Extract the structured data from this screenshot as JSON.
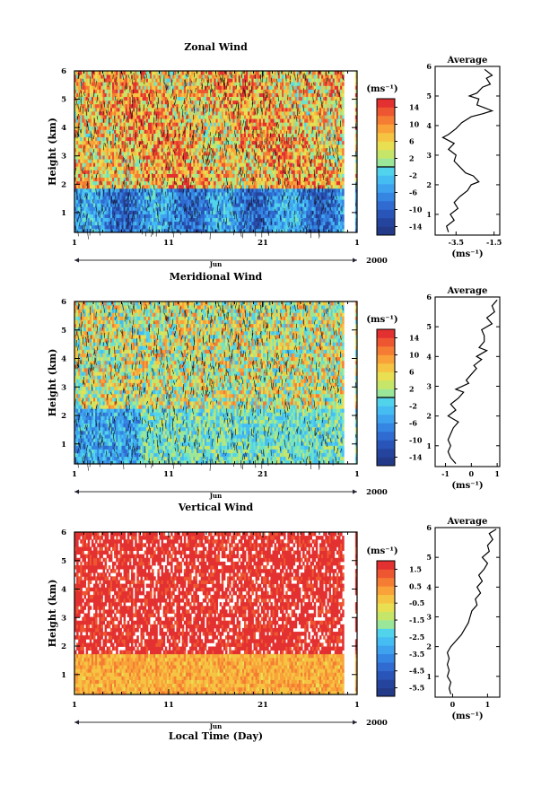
{
  "chart_data": [
    {
      "type": "heatmap",
      "title": "Zonal Wind",
      "ylabel": "Height (km)",
      "xlabel": "",
      "x_ticks": [
        "1",
        "11",
        "21",
        "1"
      ],
      "month_label": "Jun",
      "year_label": "2000",
      "ylim": [
        0.3,
        6
      ],
      "y_ticks": [
        1,
        2,
        3,
        4,
        5,
        6
      ],
      "colorbar": {
        "unit": "(ms⁻¹)",
        "range": [
          -16,
          16
        ],
        "tick_labels": [
          "14",
          "10",
          "6",
          "2",
          "-2",
          "-6",
          "-10",
          "-14"
        ],
        "tick_values": [
          14,
          10,
          6,
          2,
          -2,
          -6,
          -10,
          -14
        ]
      },
      "data_gap_days": [
        28.5,
        29.8
      ],
      "lower_layer_top_km": 1.8,
      "lower_layer_character": "negative (blue), around -8 ms⁻¹",
      "upper_layer_character": "positive (yellow-red), around 6-14 ms⁻¹",
      "profile": {
        "title": "Average",
        "xlabel": "(ms⁻¹)",
        "xlim": [
          -4.6,
          -1.2
        ],
        "x_ticks": [
          "-3.5",
          "-1.5"
        ],
        "x_tick_values": [
          -3.5,
          -1.5
        ],
        "y_ticks": [
          1,
          2,
          3,
          4,
          5,
          6
        ],
        "ylim": [
          0.3,
          6
        ],
        "points": [
          [
            -3.9,
            0.4
          ],
          [
            -4.0,
            0.6
          ],
          [
            -3.6,
            0.8
          ],
          [
            -3.8,
            1.0
          ],
          [
            -3.4,
            1.2
          ],
          [
            -3.6,
            1.4
          ],
          [
            -3.3,
            1.6
          ],
          [
            -2.9,
            1.8
          ],
          [
            -2.7,
            2.0
          ],
          [
            -2.3,
            2.1
          ],
          [
            -2.6,
            2.3
          ],
          [
            -3.0,
            2.4
          ],
          [
            -3.3,
            2.6
          ],
          [
            -3.6,
            2.8
          ],
          [
            -3.5,
            3.0
          ],
          [
            -3.9,
            3.2
          ],
          [
            -3.6,
            3.4
          ],
          [
            -4.2,
            3.6
          ],
          [
            -3.9,
            3.7
          ],
          [
            -3.5,
            3.9
          ],
          [
            -3.2,
            4.1
          ],
          [
            -2.7,
            4.3
          ],
          [
            -2.1,
            4.4
          ],
          [
            -1.6,
            4.5
          ],
          [
            -2.0,
            4.6
          ],
          [
            -2.4,
            4.7
          ],
          [
            -2.3,
            4.9
          ],
          [
            -2.8,
            5.0
          ],
          [
            -2.4,
            5.1
          ],
          [
            -2.1,
            5.3
          ],
          [
            -1.7,
            5.4
          ],
          [
            -1.9,
            5.6
          ],
          [
            -1.6,
            5.7
          ],
          [
            -2.0,
            5.9
          ]
        ]
      }
    },
    {
      "type": "heatmap",
      "title": "Meridional Wind",
      "ylabel": "Height (km)",
      "xlabel": "",
      "x_ticks": [
        "1",
        "11",
        "21",
        "1"
      ],
      "month_label": "Jun",
      "year_label": "2000",
      "ylim": [
        0.3,
        6
      ],
      "y_ticks": [
        1,
        2,
        3,
        4,
        5,
        6
      ],
      "colorbar": {
        "unit": "(ms⁻¹)",
        "range": [
          -16,
          16
        ],
        "tick_labels": [
          "14",
          "10",
          "6",
          "2",
          "-2",
          "-6",
          "-10",
          "-14"
        ],
        "tick_values": [
          14,
          10,
          6,
          2,
          -2,
          -6,
          -10,
          -14
        ]
      },
      "data_gap_days": [
        28.5,
        29.8
      ],
      "lower_layer_top_km": 2.3,
      "lower_layer_character": "mixed, mostly near zero (green-cyan), blue early in month",
      "upper_layer_character": "mixed, near zero to positive (yellow-orange)",
      "profile": {
        "title": "Average",
        "xlabel": "(ms⁻¹)",
        "xlim": [
          -1.4,
          1.1
        ],
        "x_ticks": [
          "-1",
          "0",
          "1"
        ],
        "x_tick_values": [
          -1,
          0,
          1
        ],
        "y_ticks": [
          1,
          2,
          3,
          4,
          5,
          6
        ],
        "ylim": [
          0.3,
          6
        ],
        "points": [
          [
            -0.6,
            0.4
          ],
          [
            -0.8,
            0.6
          ],
          [
            -0.9,
            0.8
          ],
          [
            -0.8,
            1.0
          ],
          [
            -0.9,
            1.2
          ],
          [
            -0.8,
            1.4
          ],
          [
            -0.7,
            1.6
          ],
          [
            -0.5,
            1.8
          ],
          [
            -0.9,
            2.0
          ],
          [
            -0.6,
            2.2
          ],
          [
            -0.8,
            2.4
          ],
          [
            -0.5,
            2.6
          ],
          [
            -0.3,
            2.8
          ],
          [
            -0.6,
            2.9
          ],
          [
            -0.1,
            3.1
          ],
          [
            -0.2,
            3.2
          ],
          [
            0.0,
            3.4
          ],
          [
            0.2,
            3.6
          ],
          [
            0.1,
            3.7
          ],
          [
            0.4,
            3.9
          ],
          [
            0.2,
            4.0
          ],
          [
            0.6,
            4.2
          ],
          [
            0.3,
            4.3
          ],
          [
            0.5,
            4.5
          ],
          [
            0.5,
            4.7
          ],
          [
            0.4,
            4.9
          ],
          [
            0.8,
            5.1
          ],
          [
            0.6,
            5.3
          ],
          [
            0.9,
            5.5
          ],
          [
            0.8,
            5.7
          ],
          [
            1.0,
            5.9
          ]
        ]
      }
    },
    {
      "type": "heatmap",
      "title": "Vertical Wind",
      "ylabel": "Height (km)",
      "xlabel": "Local Time (Day)",
      "x_ticks": [
        "1",
        "11",
        "21",
        "1"
      ],
      "month_label": "Jun",
      "year_label": "2000",
      "ylim": [
        0.3,
        6
      ],
      "y_ticks": [
        1,
        2,
        3,
        4,
        5,
        6
      ],
      "colorbar": {
        "unit": "(ms⁻¹)",
        "range": [
          -6,
          2
        ],
        "tick_labels": [
          "1.5",
          "0.5",
          "-0.5",
          "-1.5",
          "-2.5",
          "-3.5",
          "-4.5",
          "-5.5"
        ],
        "tick_values": [
          1.5,
          0.5,
          -0.5,
          -1.5,
          -2.5,
          -3.5,
          -4.5,
          -5.5
        ]
      },
      "data_gap_days": [
        28.5,
        29.8
      ],
      "lower_layer_top_km": 1.7,
      "lower_layer_character": "around 0 to 0.5 ms⁻¹ (yellow-orange)",
      "upper_layer_character": "above 1.5 ms⁻¹ (red), with missing-data streaks",
      "profile": {
        "title": "Average",
        "xlabel": "(ms⁻¹)",
        "xlim": [
          -0.5,
          1.35
        ],
        "x_ticks": [
          "0",
          "1"
        ],
        "x_tick_values": [
          0,
          1
        ],
        "y_ticks": [
          1,
          2,
          3,
          4,
          5,
          6
        ],
        "ylim": [
          0.3,
          6
        ],
        "points": [
          [
            -0.05,
            0.4
          ],
          [
            -0.1,
            0.6
          ],
          [
            -0.05,
            0.8
          ],
          [
            -0.15,
            1.0
          ],
          [
            -0.1,
            1.2
          ],
          [
            -0.15,
            1.4
          ],
          [
            -0.1,
            1.6
          ],
          [
            -0.15,
            1.8
          ],
          [
            -0.05,
            2.0
          ],
          [
            0.1,
            2.2
          ],
          [
            0.25,
            2.4
          ],
          [
            0.35,
            2.6
          ],
          [
            0.45,
            2.8
          ],
          [
            0.5,
            3.0
          ],
          [
            0.55,
            3.2
          ],
          [
            0.7,
            3.4
          ],
          [
            0.65,
            3.6
          ],
          [
            0.8,
            3.8
          ],
          [
            0.7,
            4.0
          ],
          [
            0.85,
            4.2
          ],
          [
            0.75,
            4.4
          ],
          [
            0.9,
            4.6
          ],
          [
            1.0,
            4.8
          ],
          [
            0.85,
            5.0
          ],
          [
            1.05,
            5.2
          ],
          [
            1.0,
            5.4
          ],
          [
            1.15,
            5.6
          ],
          [
            1.05,
            5.8
          ],
          [
            1.25,
            5.95
          ]
        ]
      }
    }
  ]
}
